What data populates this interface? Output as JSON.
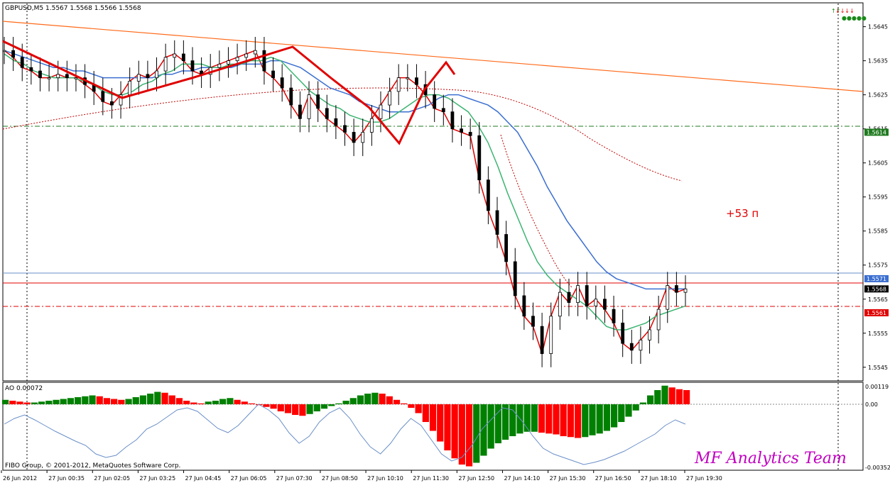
{
  "header": {
    "symbol_line": "GBPUSD,M5  1.5567 1.5568 1.5566 1.5568",
    "indicator_line": "AO 0.00072"
  },
  "footer": {
    "copyright": "FIBO Group, © 2001-2012, MetaQuotes Software Corp.",
    "watermark": "MF Analytics Team"
  },
  "annotation": {
    "text": "+53 п",
    "color": "#e00000"
  },
  "x_axis_labels": [
    "26 Jun 2012",
    "27 Jun 00:35",
    "27 Jun 02:05",
    "27 Jun 03:25",
    "27 Jun 04:45",
    "27 Jun 06:05",
    "27 Jun 07:30",
    "27 Jun 08:50",
    "27 Jun 10:10",
    "27 Jun 11:30",
    "27 Jun 12:50",
    "27 Jun 14:10",
    "27 Jun 15:30",
    "27 Jun 16:50",
    "27 Jun 18:10",
    "27 Jun 19:30"
  ],
  "price_axis_labels": [
    "1.5645",
    "1.5635",
    "1.5625",
    "1.5615",
    "1.5605",
    "1.5595",
    "1.5585",
    "1.5575",
    "1.5565",
    "1.5555",
    "1.5545"
  ],
  "price_tags": [
    {
      "label": "1.5614",
      "bg": "#1f7a1f",
      "fg": "#ffffff"
    },
    {
      "label": "1.5571",
      "bg": "#3b6fd1",
      "fg": "#ffffff"
    },
    {
      "label": "1.5568",
      "bg": "#000000",
      "fg": "#ffffff"
    },
    {
      "label": "1.5561",
      "bg": "#e00000",
      "fg": "#ffffff"
    }
  ],
  "ao_axis_labels": [
    "0.00119",
    "0.00",
    "-0.00352"
  ],
  "colors": {
    "up_bar": "#008000",
    "down_bar": "#ff0000",
    "trendline": "#ff6a1a",
    "ma_blue": "#3b6fd1",
    "ma_green": "#3cb371",
    "ma_red": "#e00000",
    "level_green": "#1f7a1f",
    "level_blue": "#6a8fc8",
    "level_red": "#e00000"
  },
  "chart_data": {
    "type": "line",
    "title": "GBPUSD,M5",
    "ylim": [
      1.5541,
      1.5652
    ],
    "price": [
      1.5638,
      1.5636,
      1.5633,
      1.5632,
      1.563,
      1.563,
      1.5631,
      1.563,
      1.563,
      1.5628,
      1.5626,
      1.5623,
      1.5622,
      1.5625,
      1.5629,
      1.5631,
      1.563,
      1.5632,
      1.5636,
      1.5637,
      1.5635,
      1.5632,
      1.5631,
      1.5633,
      1.5634,
      1.5635,
      1.5636,
      1.5637,
      1.5638,
      1.5632,
      1.563,
      1.5627,
      1.5622,
      1.5618,
      1.5625,
      1.5621,
      1.5618,
      1.5616,
      1.5614,
      1.5611,
      1.5614,
      1.5618,
      1.5622,
      1.5626,
      1.563,
      1.563,
      1.5628,
      1.5625,
      1.5621,
      1.562,
      1.5615,
      1.5614,
      1.5613,
      1.56,
      1.5591,
      1.5584,
      1.5576,
      1.5566,
      1.556,
      1.5557,
      1.5549,
      1.556,
      1.5567,
      1.5564,
      1.5569,
      1.5563,
      1.5565,
      1.5562,
      1.5558,
      1.5552,
      1.555,
      1.5553,
      1.5556,
      1.5562,
      1.5569,
      1.5567,
      1.5568
    ],
    "series": [
      {
        "name": "Blue MA",
        "values": [
          1.5638,
          1.5637,
          1.5636,
          1.5635,
          1.5634,
          1.5633,
          1.5633,
          1.5632,
          1.5632,
          1.5631,
          1.563,
          1.563,
          1.563,
          1.563,
          1.563,
          1.563,
          1.5631,
          1.5631,
          1.5632,
          1.5632,
          1.5633,
          1.5633,
          1.5633,
          1.5633,
          1.5634,
          1.5634,
          1.5634,
          1.5635,
          1.5635,
          1.5634,
          1.5633,
          1.5631,
          1.5629,
          1.5627,
          1.5626,
          1.5625,
          1.5623,
          1.5622,
          1.5621,
          1.562,
          1.562,
          1.562,
          1.5621,
          1.5622,
          1.5624,
          1.5625,
          1.5625,
          1.5624,
          1.5623,
          1.5622,
          1.562,
          1.5617,
          1.5614,
          1.5609,
          1.5604,
          1.5598,
          1.5593,
          1.5588,
          1.5584,
          1.558,
          1.5576,
          1.5573,
          1.5571,
          1.557,
          1.5569,
          1.5568,
          1.5568,
          1.5568,
          1.5568,
          1.5568
        ]
      },
      {
        "name": "Green MA",
        "values": [
          1.5637,
          1.5635,
          1.5634,
          1.5632,
          1.5631,
          1.563,
          1.563,
          1.563,
          1.5629,
          1.5628,
          1.5626,
          1.5625,
          1.5625,
          1.5626,
          1.5628,
          1.5629,
          1.5631,
          1.5632,
          1.5634,
          1.5634,
          1.5634,
          1.5633,
          1.5633,
          1.5634,
          1.5634,
          1.5635,
          1.5635,
          1.5636,
          1.5635,
          1.5632,
          1.5629,
          1.5626,
          1.5624,
          1.5622,
          1.5621,
          1.5619,
          1.5618,
          1.5617,
          1.5617,
          1.5618,
          1.562,
          1.5622,
          1.5624,
          1.5625,
          1.5625,
          1.5624,
          1.5622,
          1.562,
          1.5616,
          1.5611,
          1.5604,
          1.5596,
          1.5589,
          1.5582,
          1.5576,
          1.5572,
          1.5569,
          1.5567,
          1.5565,
          1.5563,
          1.556,
          1.5557,
          1.5556,
          1.5556,
          1.5557,
          1.5558,
          1.556,
          1.5561,
          1.5562,
          1.5563
        ]
      }
    ],
    "levels": [
      1.5614,
      1.5571,
      1.5568,
      1.5561
    ],
    "ao": [
      5,
      4,
      3,
      2,
      2,
      3,
      4,
      5,
      6,
      7,
      8,
      9,
      10,
      9,
      7,
      6,
      5,
      6,
      8,
      10,
      12,
      14,
      13,
      10,
      7,
      4,
      2,
      1,
      3,
      4,
      6,
      7,
      5,
      3,
      1,
      -1,
      -3,
      -5,
      -8,
      -10,
      -12,
      -13,
      -11,
      -8,
      -5,
      -2,
      1,
      4,
      7,
      10,
      12,
      13,
      12,
      9,
      5,
      1,
      -4,
      -10,
      -20,
      -30,
      -42,
      -52,
      -61,
      -68,
      -70,
      -66,
      -58,
      -50,
      -44,
      -40,
      -36,
      -33,
      -31,
      -31,
      -32,
      -33,
      -34,
      -36,
      -37,
      -38,
      -37,
      -35,
      -33,
      -30,
      -26,
      -20,
      -14,
      -7,
      2,
      10,
      16,
      21,
      19,
      17,
      16
    ]
  }
}
